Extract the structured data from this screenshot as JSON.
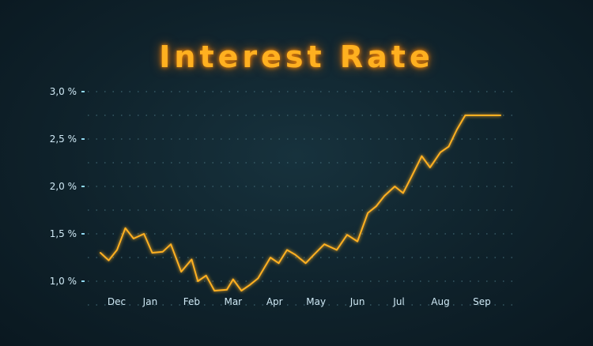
{
  "chart_data": {
    "type": "line",
    "title": "Interest Rate",
    "xlabel": "",
    "ylabel": "",
    "x_tick_labels": [
      "Dec",
      "Jan",
      "Feb",
      "Mar",
      "Apr",
      "May",
      "Jun",
      "Jul",
      "Aug",
      "Sep"
    ],
    "y_tick_labels": [
      "3,0 %",
      "2,5 %",
      "2,0 %",
      "1,5 %",
      "1,0 %"
    ],
    "y_ticks": [
      3.0,
      2.5,
      2.0,
      1.5,
      1.0
    ],
    "ylim": [
      0.7,
      3.1
    ],
    "xlim": [
      -0.2,
      9.45
    ],
    "grid": true,
    "colors": {
      "line": "#ffb020",
      "axis": "#8fd8f0",
      "grid": "#3e6470",
      "title": "#ffb020"
    },
    "series": [
      {
        "x": [
          -0.2,
          0.0,
          0.2,
          0.4,
          0.6,
          0.85,
          1.05,
          1.3,
          1.5,
          1.75,
          2.0,
          2.15,
          2.35,
          2.55,
          2.85,
          3.0,
          3.2,
          3.4,
          3.6,
          3.9,
          4.1,
          4.3,
          4.5,
          4.75,
          4.95,
          5.2,
          5.5,
          5.75,
          6.0,
          6.25,
          6.45,
          6.65,
          6.9,
          7.1,
          7.3,
          7.55,
          7.75,
          8.0,
          8.2,
          8.4,
          8.6,
          8.85,
          9.0,
          9.2,
          9.45
        ],
        "y": [
          1.3,
          1.22,
          1.33,
          1.56,
          1.45,
          1.5,
          1.3,
          1.31,
          1.39,
          1.1,
          1.23,
          1.0,
          1.06,
          0.9,
          0.91,
          1.02,
          0.9,
          0.96,
          1.03,
          1.25,
          1.19,
          1.33,
          1.28,
          1.19,
          1.28,
          1.39,
          1.33,
          1.49,
          1.42,
          1.72,
          1.79,
          1.9,
          2.0,
          1.93,
          2.1,
          2.32,
          2.2,
          2.36,
          2.42,
          2.6,
          2.75,
          2.75,
          2.75,
          2.75,
          2.75
        ]
      }
    ]
  }
}
